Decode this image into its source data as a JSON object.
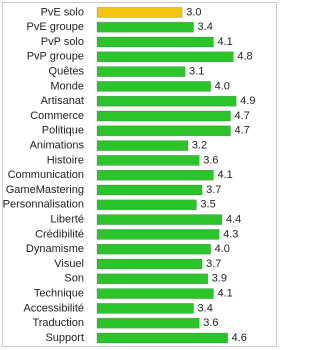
{
  "chart_data": {
    "type": "bar",
    "orientation": "horizontal",
    "categories": [
      "PvE solo",
      "PvE groupe",
      "PvP solo",
      "PvP groupe",
      "Quêtes",
      "Monde",
      "Artisanat",
      "Commerce",
      "Politique",
      "Animations",
      "Histoire",
      "Communication",
      "GameMastering",
      "Personnalisation",
      "Liberté",
      "Crédibilité",
      "Dynamisme",
      "Visuel",
      "Son",
      "Technique",
      "Accessibilité",
      "Traduction",
      "Support"
    ],
    "values": [
      3.0,
      3.4,
      4.1,
      4.8,
      3.1,
      4.0,
      4.9,
      4.7,
      4.7,
      3.2,
      3.6,
      4.1,
      3.7,
      3.5,
      4.4,
      4.3,
      4.0,
      3.7,
      3.9,
      4.1,
      3.4,
      3.6,
      4.6
    ],
    "value_labels": [
      "3.0",
      "3.4",
      "4.1",
      "4.8",
      "3.1",
      "4.0",
      "4.9",
      "4.7",
      "4.7",
      "3.2",
      "3.6",
      "4.1",
      "3.7",
      "3.5",
      "4.4",
      "4.3",
      "4.0",
      "3.7",
      "3.9",
      "4.1",
      "3.4",
      "3.6",
      "4.6"
    ],
    "colors": [
      "#f2c40f",
      "#2bc42b",
      "#2bc42b",
      "#2bc42b",
      "#2bc42b",
      "#2bc42b",
      "#2bc42b",
      "#2bc42b",
      "#2bc42b",
      "#2bc42b",
      "#2bc42b",
      "#2bc42b",
      "#2bc42b",
      "#2bc42b",
      "#2bc42b",
      "#2bc42b",
      "#2bc42b",
      "#2bc42b",
      "#2bc42b",
      "#2bc42b",
      "#2bc42b",
      "#2bc42b",
      "#2bc42b"
    ],
    "xlim": [
      0,
      5
    ]
  }
}
